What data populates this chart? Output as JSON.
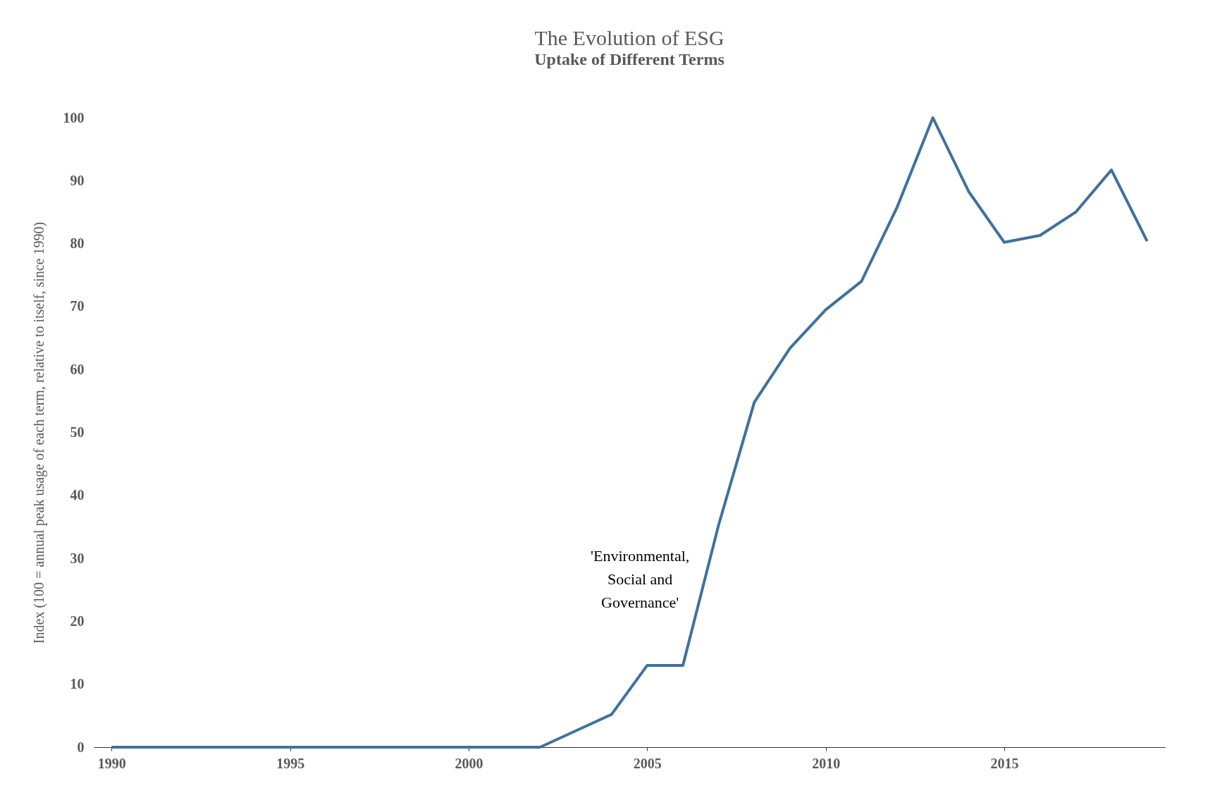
{
  "chart_data": {
    "type": "line",
    "title": "The Evolution of ESG",
    "subtitle": "Uptake of Different Terms",
    "ylabel": "Index (100 = annual peak usage of each term, relative to itself, since 1990)",
    "x": [
      1990,
      1991,
      1992,
      1993,
      1994,
      1995,
      1996,
      1997,
      1998,
      1999,
      2000,
      2001,
      2002,
      2003,
      2004,
      2005,
      2006,
      2007,
      2008,
      2009,
      2010,
      2011,
      2012,
      2013,
      2014,
      2015,
      2016,
      2017,
      2018,
      2019
    ],
    "series": [
      {
        "name": "'Environmental, Social and Governance'",
        "color": "#41719c",
        "values": [
          0,
          0,
          0,
          0,
          0,
          0,
          0,
          0,
          0,
          0,
          0,
          0,
          0,
          2.6,
          5.2,
          13,
          13,
          35.3,
          54.8,
          63.4,
          69.5,
          74,
          85.8,
          100,
          88.3,
          80.2,
          81.3,
          85,
          91.7,
          80.4
        ]
      }
    ],
    "xlim": [
      1989.5,
      2019.5
    ],
    "xticks": [
      1990,
      1995,
      2000,
      2005,
      2010,
      2015
    ],
    "ylim": [
      0,
      100
    ],
    "yticks": [
      0,
      10,
      20,
      30,
      40,
      50,
      60,
      70,
      80,
      90,
      100
    ],
    "grid": false,
    "marker": "none",
    "line_style": "solid"
  }
}
